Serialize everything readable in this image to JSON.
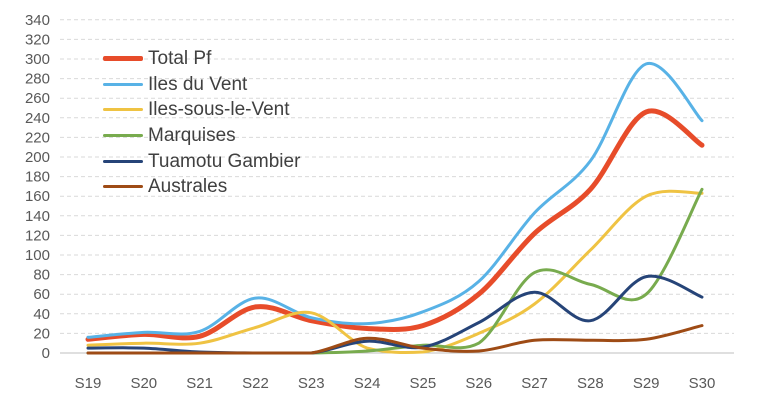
{
  "chart_data": {
    "type": "line",
    "title": "",
    "xlabel": "",
    "ylabel": "",
    "categories": [
      "S19",
      "S20",
      "S21",
      "S22",
      "S23",
      "S24",
      "S25",
      "S26",
      "S27",
      "S28",
      "S29",
      "S30"
    ],
    "series": [
      {
        "name": "Total Pf",
        "color": "#E74C2A",
        "width": 5,
        "values": [
          14,
          19,
          17,
          47,
          33,
          25,
          28,
          60,
          122,
          167,
          246,
          212
        ]
      },
      {
        "name": "Iles du Vent",
        "color": "#58B2E6",
        "width": 3,
        "values": [
          16,
          21,
          22,
          56,
          36,
          30,
          42,
          73,
          143,
          196,
          295,
          237
        ]
      },
      {
        "name": "Iles-sous-le-Vent",
        "color": "#EFC343",
        "width": 3,
        "values": [
          8,
          10,
          10,
          26,
          41,
          5,
          1,
          20,
          50,
          105,
          160,
          163
        ]
      },
      {
        "name": "Marquises",
        "color": "#78AB4E",
        "width": 3,
        "values": [
          0,
          0,
          0,
          0,
          0,
          2,
          8,
          10,
          82,
          70,
          60,
          167
        ]
      },
      {
        "name": "Tuamotu Gambier",
        "color": "#264478",
        "width": 3,
        "values": [
          5,
          5,
          1,
          0,
          0,
          12,
          6,
          31,
          62,
          33,
          78,
          57
        ]
      },
      {
        "name": "Australes",
        "color": "#9E4B15",
        "width": 3,
        "values": [
          0,
          0,
          0,
          0,
          0,
          15,
          5,
          2,
          13,
          13,
          14,
          28
        ]
      }
    ],
    "ylim": [
      0,
      340
    ],
    "yticks": [
      0,
      20,
      40,
      60,
      80,
      100,
      120,
      140,
      160,
      180,
      200,
      220,
      240,
      260,
      280,
      300,
      320,
      340
    ],
    "grid": "horizontal dashed",
    "legend_position": "top-left overlay, no border",
    "smooth": true
  },
  "style": {
    "background": "#FFFFFF",
    "grid_color": "#D9D9D9",
    "baseline_color": "#BFBFBF",
    "tick_label_color": "#595959",
    "legend_text_color": "#404040"
  }
}
